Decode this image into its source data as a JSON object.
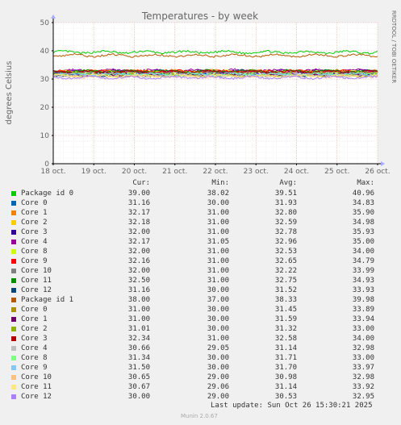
{
  "chart_data": {
    "type": "line",
    "title": "Temperatures - by week",
    "ylabel": "degrees Celsius",
    "watermark": "RRDTOOL / TOBI OETIKER",
    "ylim": [
      0,
      50
    ],
    "yticks": [
      0,
      10,
      20,
      30,
      40,
      50
    ],
    "categories": [
      "18 oct.",
      "19 oct.",
      "20 oct.",
      "21 oct.",
      "22 oct.",
      "23 oct.",
      "24 oct.",
      "25 oct.",
      "26 oct."
    ],
    "grid": true,
    "columns": [
      "Cur:",
      "Min:",
      "Avg:",
      "Max:"
    ],
    "series": [
      {
        "name": "Package id 0",
        "color": "#00cc00",
        "cur": "39.00",
        "min": "38.02",
        "avg": "39.51",
        "max": "40.96"
      },
      {
        "name": "Core 0",
        "color": "#0066b3",
        "cur": "31.16",
        "min": "30.00",
        "avg": "31.93",
        "max": "34.83"
      },
      {
        "name": "Core 1",
        "color": "#ff8000",
        "cur": "32.17",
        "min": "31.00",
        "avg": "32.80",
        "max": "35.90"
      },
      {
        "name": "Core 2",
        "color": "#ffcc00",
        "cur": "32.18",
        "min": "31.00",
        "avg": "32.59",
        "max": "34.98"
      },
      {
        "name": "Core 3",
        "color": "#330099",
        "cur": "32.00",
        "min": "31.00",
        "avg": "32.78",
        "max": "35.93"
      },
      {
        "name": "Core 4",
        "color": "#990099",
        "cur": "32.17",
        "min": "31.05",
        "avg": "32.96",
        "max": "35.00"
      },
      {
        "name": "Core 8",
        "color": "#ccff00",
        "cur": "32.00",
        "min": "31.00",
        "avg": "32.53",
        "max": "34.00"
      },
      {
        "name": "Core 9",
        "color": "#ff0000",
        "cur": "32.16",
        "min": "31.00",
        "avg": "32.65",
        "max": "34.79"
      },
      {
        "name": "Core 10",
        "color": "#808080",
        "cur": "32.00",
        "min": "31.00",
        "avg": "32.22",
        "max": "33.99"
      },
      {
        "name": "Core 11",
        "color": "#008f00",
        "cur": "32.50",
        "min": "31.00",
        "avg": "32.75",
        "max": "34.93"
      },
      {
        "name": "Core 12",
        "color": "#00487d",
        "cur": "31.16",
        "min": "30.00",
        "avg": "31.52",
        "max": "33.93"
      },
      {
        "name": "Package id 1",
        "color": "#b35a00",
        "cur": "38.00",
        "min": "37.00",
        "avg": "38.33",
        "max": "39.98"
      },
      {
        "name": "Core 0",
        "color": "#b38f00",
        "cur": "31.00",
        "min": "30.00",
        "avg": "31.45",
        "max": "33.89"
      },
      {
        "name": "Core 1",
        "color": "#6b006b",
        "cur": "31.00",
        "min": "30.00",
        "avg": "31.59",
        "max": "33.94"
      },
      {
        "name": "Core 2",
        "color": "#8fb300",
        "cur": "31.01",
        "min": "30.00",
        "avg": "31.32",
        "max": "33.00"
      },
      {
        "name": "Core 3",
        "color": "#b30000",
        "cur": "32.34",
        "min": "31.00",
        "avg": "32.58",
        "max": "34.00"
      },
      {
        "name": "Core 4",
        "color": "#bebebe",
        "cur": "30.66",
        "min": "29.05",
        "avg": "31.14",
        "max": "32.98"
      },
      {
        "name": "Core 8",
        "color": "#80ff80",
        "cur": "31.34",
        "min": "30.00",
        "avg": "31.71",
        "max": "33.00"
      },
      {
        "name": "Core 9",
        "color": "#80c9ff",
        "cur": "31.50",
        "min": "30.00",
        "avg": "31.70",
        "max": "33.97"
      },
      {
        "name": "Core 10",
        "color": "#ffc080",
        "cur": "30.65",
        "min": "29.00",
        "avg": "30.98",
        "max": "32.98"
      },
      {
        "name": "Core 11",
        "color": "#ffe680",
        "cur": "30.67",
        "min": "29.06",
        "avg": "31.14",
        "max": "33.92"
      },
      {
        "name": "Core 12",
        "color": "#aa80ff",
        "cur": "30.00",
        "min": "29.00",
        "avg": "30.53",
        "max": "32.95"
      }
    ]
  },
  "footer": {
    "last_update": "Last update: Sun Oct 26 15:30:21 2025",
    "version": "Munin 2.0.67"
  }
}
